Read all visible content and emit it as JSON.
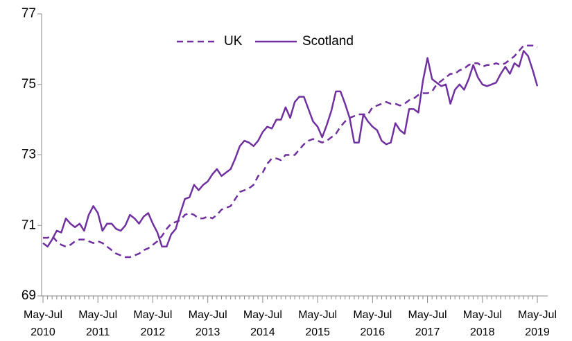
{
  "chart_data": {
    "type": "line",
    "categories": [
      "May-Jul 2010",
      null,
      null,
      null,
      null,
      null,
      null,
      null,
      null,
      null,
      null,
      null,
      "May-Jul 2011",
      null,
      null,
      null,
      null,
      null,
      null,
      null,
      null,
      null,
      null,
      null,
      "May-Jul 2012",
      null,
      null,
      null,
      null,
      null,
      null,
      null,
      null,
      null,
      null,
      null,
      "May-Jul 2013",
      null,
      null,
      null,
      null,
      null,
      null,
      null,
      null,
      null,
      null,
      null,
      "May-Jul 2014",
      null,
      null,
      null,
      null,
      null,
      null,
      null,
      null,
      null,
      null,
      null,
      "May-Jul 2015",
      null,
      null,
      null,
      null,
      null,
      null,
      null,
      null,
      null,
      null,
      null,
      "May-Jul 2016",
      null,
      null,
      null,
      null,
      null,
      null,
      null,
      null,
      null,
      null,
      null,
      "May-Jul 2017",
      null,
      null,
      null,
      null,
      null,
      null,
      null,
      null,
      null,
      null,
      null,
      "May-Jul 2018",
      null,
      null,
      null,
      null,
      null,
      null,
      null,
      null,
      null,
      null,
      null,
      "May-Jul 2019"
    ],
    "series": [
      {
        "name": "UK",
        "color": "#7030a0",
        "dash": true,
        "values": [
          70.65,
          70.65,
          70.7,
          70.55,
          70.45,
          70.4,
          70.45,
          70.55,
          70.6,
          70.6,
          70.55,
          70.5,
          70.55,
          70.5,
          70.4,
          70.3,
          70.2,
          70.15,
          70.1,
          70.1,
          70.15,
          70.2,
          70.3,
          70.35,
          70.45,
          70.55,
          70.7,
          70.9,
          71.05,
          71.1,
          71.15,
          71.3,
          71.35,
          71.3,
          71.2,
          71.2,
          71.25,
          71.2,
          71.3,
          71.45,
          71.5,
          71.55,
          71.75,
          71.95,
          72.0,
          72.05,
          72.15,
          72.4,
          72.5,
          72.75,
          72.9,
          72.9,
          72.85,
          73.0,
          73.0,
          73.0,
          73.15,
          73.3,
          73.4,
          73.45,
          73.4,
          73.35,
          73.4,
          73.5,
          73.6,
          73.8,
          73.95,
          74.05,
          74.1,
          74.15,
          74.15,
          74.15,
          74.35,
          74.4,
          74.45,
          74.5,
          74.45,
          74.45,
          74.4,
          74.45,
          74.55,
          74.6,
          74.7,
          74.75,
          74.75,
          74.8,
          75.0,
          75.1,
          75.2,
          75.3,
          75.3,
          75.4,
          75.45,
          75.55,
          75.6,
          75.6,
          75.5,
          75.55,
          75.55,
          75.6,
          75.55,
          75.6,
          75.7,
          75.8,
          75.95,
          76.1,
          76.1,
          76.1,
          76.05
        ]
      },
      {
        "name": "Scotland",
        "color": "#7030a0",
        "dash": false,
        "values": [
          70.5,
          70.4,
          70.6,
          70.85,
          70.8,
          71.2,
          71.05,
          70.95,
          71.05,
          70.85,
          71.3,
          71.55,
          71.35,
          70.85,
          71.05,
          71.05,
          70.9,
          70.85,
          71.0,
          71.3,
          71.2,
          71.05,
          71.25,
          71.35,
          71.05,
          70.8,
          70.4,
          70.4,
          70.75,
          70.9,
          71.35,
          71.75,
          71.8,
          72.15,
          72.0,
          72.15,
          72.25,
          72.45,
          72.6,
          72.4,
          72.5,
          72.6,
          72.9,
          73.25,
          73.4,
          73.35,
          73.25,
          73.4,
          73.65,
          73.8,
          73.75,
          74.0,
          74.0,
          74.35,
          74.05,
          74.5,
          74.65,
          74.65,
          74.3,
          73.95,
          73.8,
          73.5,
          73.85,
          74.25,
          74.8,
          74.8,
          74.45,
          74.05,
          73.35,
          73.35,
          74.15,
          73.95,
          73.8,
          73.7,
          73.4,
          73.3,
          73.35,
          73.9,
          73.7,
          73.6,
          74.3,
          74.3,
          74.2,
          75.1,
          75.75,
          75.15,
          75.05,
          74.95,
          75.0,
          74.45,
          74.85,
          75.0,
          74.85,
          75.15,
          75.55,
          75.2,
          75.0,
          74.95,
          75.0,
          75.05,
          75.3,
          75.5,
          75.3,
          75.6,
          75.5,
          75.95,
          75.8,
          75.4,
          74.95
        ]
      }
    ],
    "ylim": [
      69,
      77
    ],
    "yticks": [
      69,
      71,
      73,
      75,
      77
    ],
    "grid": false,
    "legend": "top"
  }
}
